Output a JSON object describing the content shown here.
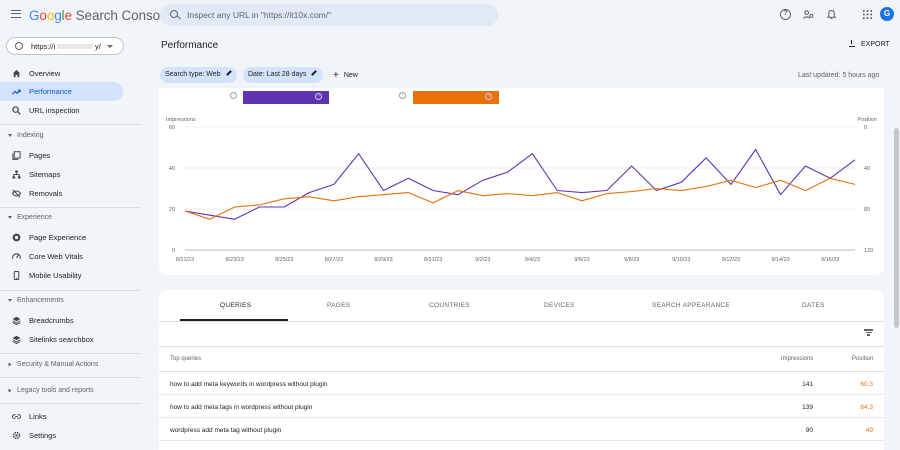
{
  "app": {
    "logo_text": "Google Search Console",
    "search_placeholder": "Inspect any URL in \"https://it10x.com/\"",
    "avatar_letter": "G"
  },
  "sidebar": {
    "property": "https://i",
    "property_suffix": "y/",
    "items": [
      {
        "label": "Overview"
      },
      {
        "label": "Performance",
        "active": true
      },
      {
        "label": "URL inspection"
      }
    ],
    "sections": [
      {
        "title": "Indexing",
        "items": [
          {
            "label": "Pages"
          },
          {
            "label": "Sitemaps"
          },
          {
            "label": "Removals"
          }
        ]
      },
      {
        "title": "Experience",
        "items": [
          {
            "label": "Page Experience"
          },
          {
            "label": "Core Web Vitals"
          },
          {
            "label": "Mobile Usability"
          }
        ]
      },
      {
        "title": "Enhancements",
        "items": [
          {
            "label": "Breadcrumbs"
          },
          {
            "label": "Sitelinks searchbox"
          }
        ]
      },
      {
        "title": "Security & Manual Actions",
        "items": []
      },
      {
        "title": "Legacy tools and reports",
        "items": []
      }
    ],
    "bottom": [
      {
        "label": "Links"
      },
      {
        "label": "Settings"
      }
    ]
  },
  "main": {
    "title": "Performance",
    "export_label": "EXPORT",
    "filters": [
      {
        "label": "Search type: Web"
      },
      {
        "label": "Date: Last 28 days"
      }
    ],
    "new_label": "New",
    "last_updated": "Last updated: 5 hours ago"
  },
  "colors": {
    "impressions": "#5e35b1",
    "position": "#e8710a",
    "accent": "#0b57d0"
  },
  "chart_data": {
    "type": "line",
    "title": "",
    "ylabel_left": "Impressions",
    "ylabel_right": "Position",
    "yticks_left": [
      0,
      20,
      40,
      60
    ],
    "yticks_right": [
      0,
      40,
      80,
      120
    ],
    "ylim_left": [
      0,
      60
    ],
    "ylim_right": [
      120,
      0
    ],
    "xtick_labels": [
      "8/21/23",
      "8/23/23",
      "8/25/23",
      "8/27/23",
      "8/29/23",
      "8/31/23",
      "9/2/23",
      "9/4/23",
      "9/6/23",
      "9/8/23",
      "9/10/23",
      "9/12/23",
      "9/14/23",
      "9/16/23"
    ],
    "x": [
      "8/21/23",
      "8/22/23",
      "8/23/23",
      "8/24/23",
      "8/25/23",
      "8/26/23",
      "8/27/23",
      "8/28/23",
      "8/29/23",
      "8/30/23",
      "8/31/23",
      "9/1/23",
      "9/2/23",
      "9/3/23",
      "9/4/23",
      "9/5/23",
      "9/6/23",
      "9/7/23",
      "9/8/23",
      "9/9/23",
      "9/10/23",
      "9/11/23",
      "9/12/23",
      "9/13/23",
      "9/14/23",
      "9/15/23",
      "9/16/23",
      "9/17/23"
    ],
    "series": [
      {
        "name": "Impressions",
        "axis": "left",
        "values": [
          19,
          17,
          15,
          21,
          21,
          28,
          32,
          47,
          29,
          35,
          29,
          27,
          34,
          38,
          47,
          29,
          28,
          29,
          41,
          29,
          33,
          45,
          32,
          49,
          27,
          41,
          35,
          44
        ]
      },
      {
        "name": "Position",
        "axis": "right",
        "values": [
          82,
          90,
          78,
          76,
          70,
          68,
          72,
          68,
          66,
          64,
          74,
          62,
          67,
          65,
          67,
          64,
          72,
          65,
          63,
          60,
          62,
          58,
          52,
          59,
          52,
          62,
          50,
          56
        ]
      }
    ],
    "grid": true,
    "legend": "top"
  },
  "table": {
    "tabs": [
      "QUERIES",
      "PAGES",
      "COUNTRIES",
      "DEVICES",
      "SEARCH APPEARANCE",
      "DATES"
    ],
    "columns": [
      "Top queries",
      "Impressions",
      "Position"
    ],
    "rows": [
      {
        "query": "how to add meta keywords in wordpress without plugin",
        "impressions": "141",
        "position": "60.3"
      },
      {
        "query": "how to add meta tags in wordpress without plugin",
        "impressions": "139",
        "position": "64.3"
      },
      {
        "query": "wordpress add meta tag without plugin",
        "impressions": "90",
        "position": "49"
      }
    ]
  }
}
